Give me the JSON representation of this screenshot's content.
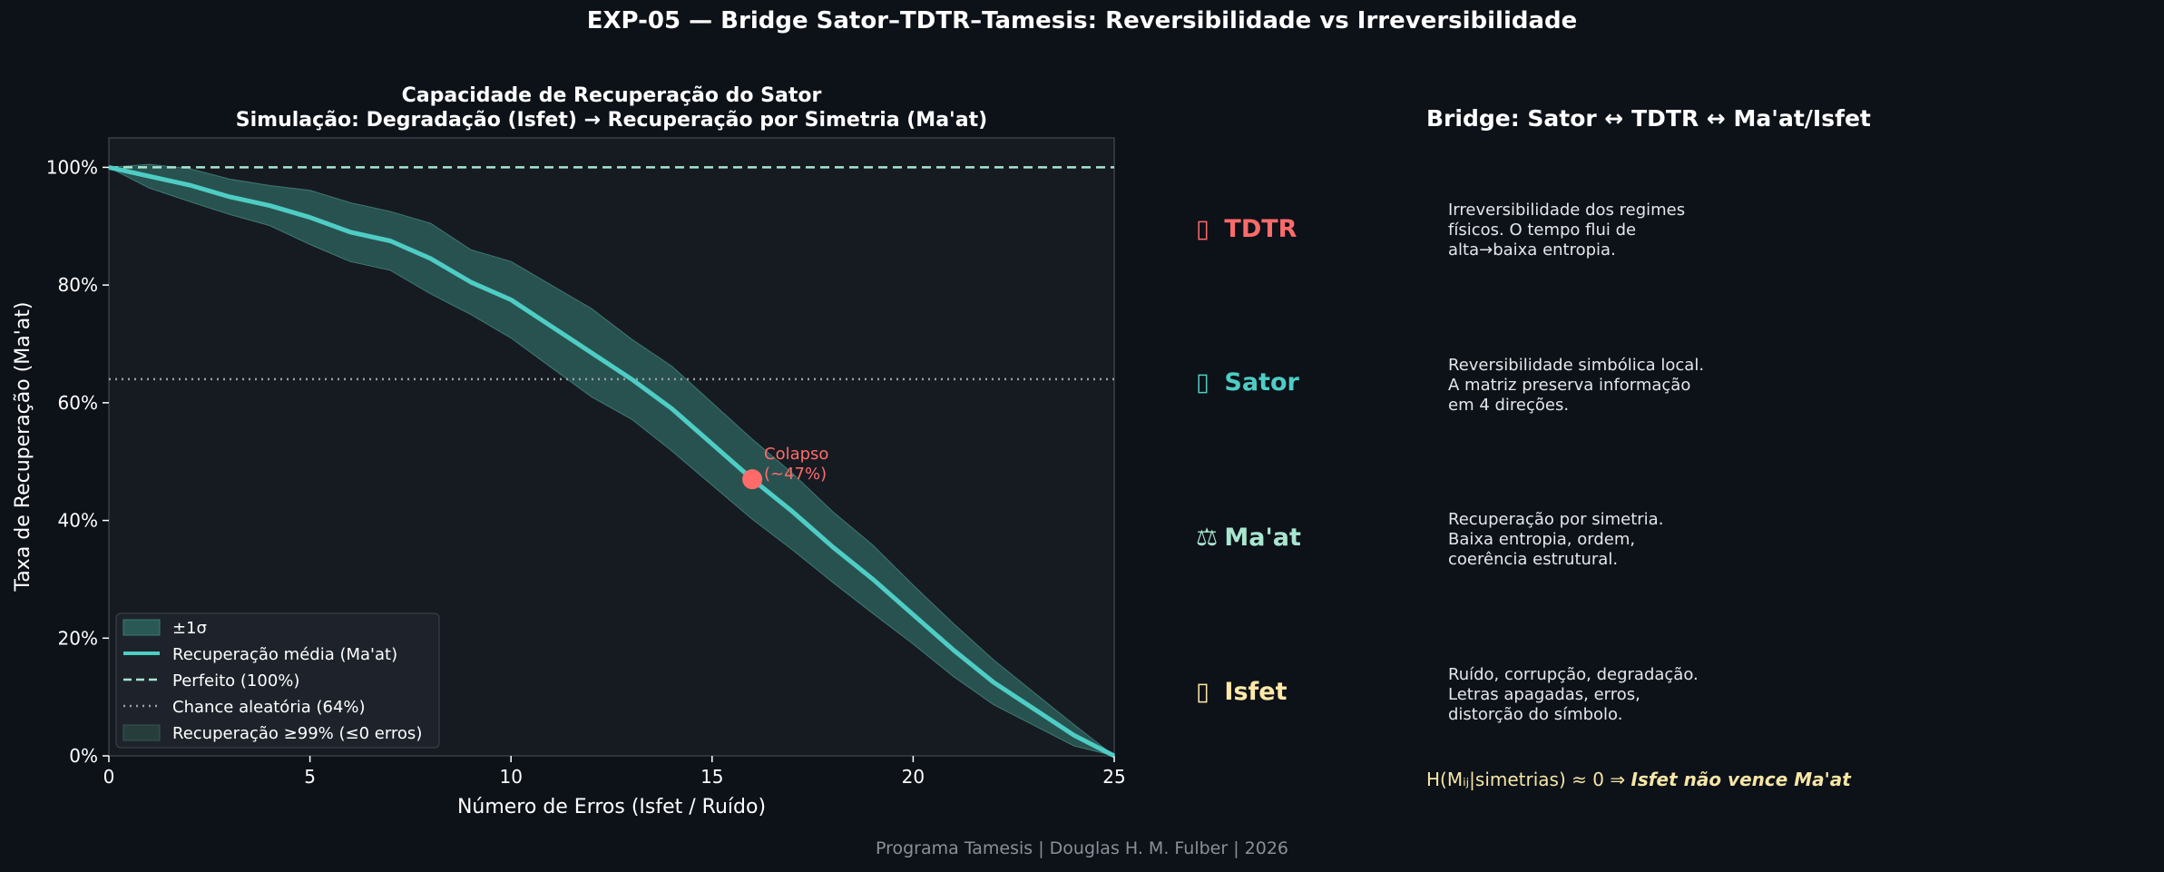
{
  "suptitle": "EXP-05 — Bridge Sator–TDTR–Tamesis: Reversibilidade vs Irreversibilidade",
  "footer": "Programa Tamesis | Douglas H. M. Fulber | 2026",
  "chart_data": {
    "type": "line",
    "title_line1": "Capacidade de Recuperação do Sator",
    "title_line2": "Simulação: Degradação (Isfet) → Recuperação por Simetria (Ma'at)",
    "xlabel": "Número de Erros (Isfet / Ruído)",
    "ylabel": "Taxa de Recuperação (Ma'at)",
    "xlim": [
      0,
      25
    ],
    "ylim": [
      0,
      105
    ],
    "xticks": [
      0,
      5,
      10,
      15,
      20,
      25
    ],
    "yticks": [
      0,
      20,
      40,
      60,
      80,
      100
    ],
    "ytick_suffix": "%",
    "series": [
      {
        "name": "Recuperação média (Ma'at)",
        "color": "#4ecdc4",
        "x": [
          0,
          1,
          2,
          3,
          4,
          5,
          6,
          7,
          8,
          9,
          10,
          11,
          12,
          13,
          14,
          15,
          16,
          17,
          18,
          19,
          20,
          21,
          22,
          23,
          24,
          25
        ],
        "y": [
          100,
          98.5,
          97,
          95,
          93.5,
          91.5,
          89,
          87.5,
          84.5,
          80.5,
          77.5,
          73,
          68.5,
          64,
          59,
          53,
          47,
          41.5,
          35.5,
          30,
          24,
          18,
          12.5,
          8,
          3.5,
          0
        ],
        "std": [
          0,
          2,
          2.8,
          3,
          3.4,
          4.6,
          5,
          5,
          6,
          5.5,
          6.5,
          7,
          7.5,
          6.8,
          7.2,
          7,
          6.8,
          6.5,
          6,
          5.8,
          5,
          4.5,
          3.8,
          2.8,
          1.8,
          0
        ]
      }
    ],
    "reference_lines": [
      {
        "name": "Perfeito (100%)",
        "y": 100,
        "style": "dashed",
        "color": "#a8e6cf"
      },
      {
        "name": "Chance aleatória (64%)",
        "y": 64,
        "style": "dotted",
        "color": "#9a9ea6"
      }
    ],
    "band_label": "±1σ",
    "threshold_label": "Recuperação ≥99% (≤0 erros)",
    "annotation": {
      "x": 16,
      "y": 47,
      "text_line1": "Colapso",
      "text_line2": "(~47%)",
      "color": "#ff6b6b"
    },
    "legend_position": "lower-left",
    "grid": false
  },
  "bridge": {
    "title": "Bridge: Sator ↔ TDTR ↔ Ma'at/Isfet",
    "concepts": [
      {
        "glyph": "▯",
        "name": "TDTR",
        "color": "#ff6b6b",
        "desc": "Irreversibilidade dos regimes\nfísicos. O tempo flui de\nalta→baixa entropia."
      },
      {
        "glyph": "▯",
        "name": "Sator",
        "color": "#4ecdc4",
        "desc": "Reversibilidade simbólica local.\nA matriz preserva informação\nem 4 direções."
      },
      {
        "glyph": "⚖",
        "name": "Ma'at",
        "color": "#a8e6cf",
        "desc": "Recuperação por simetria.\nBaixa entropia, ordem,\ncoerência estrutural."
      },
      {
        "glyph": "▯",
        "name": "Isfet",
        "color": "#ffe9a8",
        "desc": "Ruído, corrupção, degradação.\nLetras apagadas, erros,\ndistorção do símbolo."
      }
    ],
    "formula_math": "H(Mᵢⱼ|simetrias) ≈ 0 ⇒ ",
    "formula_claim": "Isfet não vence Ma'at"
  }
}
